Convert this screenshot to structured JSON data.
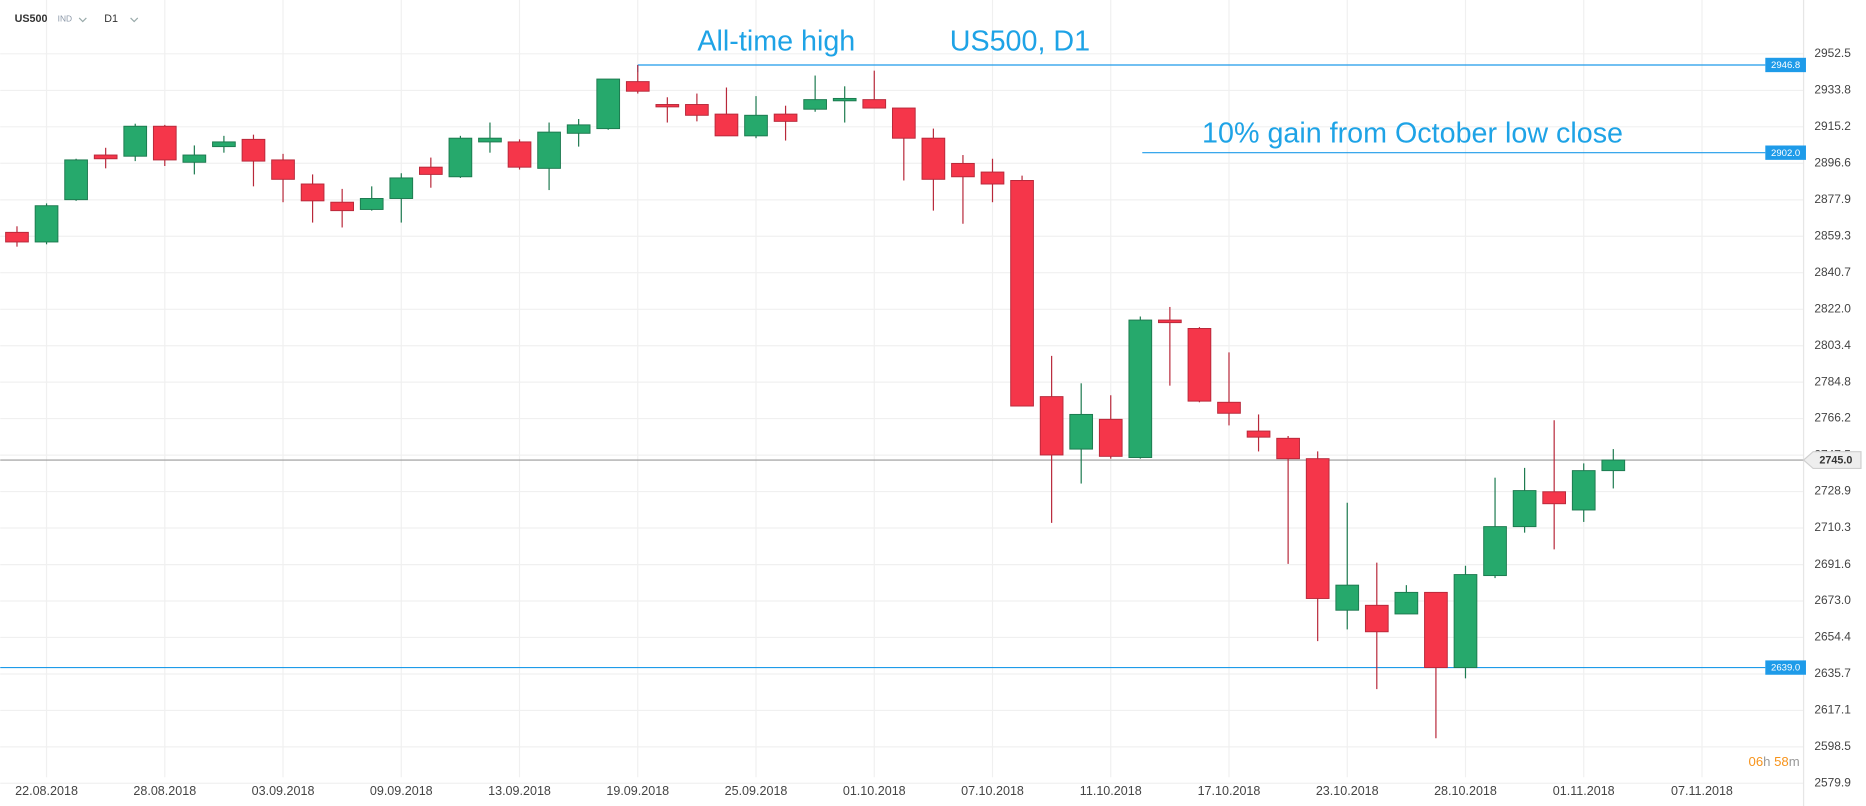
{
  "header": {
    "symbol": "US500",
    "market": "IND",
    "timeframe": "D1"
  },
  "countdown": {
    "hours": "06",
    "hours_unit": "h",
    "minutes": "58",
    "minutes_unit": "m"
  },
  "chart_data": {
    "type": "candlestick",
    "title": "US500, D1",
    "categories": [
      null,
      "22.08.2018",
      null,
      null,
      null,
      "28.08.2018",
      null,
      null,
      null,
      "03.09.2018",
      null,
      null,
      null,
      "09.09.2018",
      null,
      null,
      null,
      "13.09.2018",
      null,
      null,
      null,
      "19.09.2018",
      null,
      null,
      null,
      "25.09.2018",
      null,
      null,
      null,
      "01.10.2018",
      null,
      null,
      null,
      "07.10.2018",
      null,
      null,
      null,
      "11.10.2018",
      null,
      null,
      null,
      "17.10.2018",
      null,
      null,
      null,
      "23.10.2018",
      null,
      null,
      null,
      "28.10.2018",
      null,
      null,
      null,
      "01.11.2018",
      null,
      null,
      null,
      "07.11.2018"
    ],
    "open": [
      2861.3,
      2856.4,
      2878.0,
      2900.8,
      2900.2,
      2915.5,
      2897.1,
      2905.1,
      2908.8,
      2898.3,
      2886.0,
      2876.7,
      2873.0,
      2878.6,
      2894.6,
      2889.7,
      2907.5,
      2907.5,
      2894.0,
      2911.9,
      2914.3,
      2938.3,
      2926.6,
      2926.6,
      2921.7,
      2910.6,
      2921.7,
      2924.2,
      2928.5,
      2929.1,
      2924.8,
      2909.4,
      2896.5,
      2892.1,
      2887.8,
      2777.4,
      2750.6,
      2765.8,
      2746.3,
      2816.5,
      2812.2,
      2774.5,
      2759.8,
      2756.1,
      2745.7,
      2668.3,
      2670.8,
      2666.4,
      2677.4,
      2639.0,
      2686.0,
      2711.0,
      2728.8,
      2719.5,
      2739.6,
      null,
      null,
      null
    ],
    "high": [
      2864.4,
      2876.1,
      2898.9,
      2904.5,
      2916.8,
      2916.2,
      2905.7,
      2910.6,
      2911.2,
      2901.4,
      2890.9,
      2883.5,
      2884.8,
      2891.5,
      2899.5,
      2910.6,
      2917.4,
      2908.8,
      2917.4,
      2919.2,
      2939.6,
      2946.8,
      2930.3,
      2932.2,
      2935.3,
      2930.9,
      2926.0,
      2941.4,
      2935.9,
      2943.9,
      2924.8,
      2914.3,
      2900.8,
      2898.9,
      2890.3,
      2798.2,
      2784.2,
      2778.1,
      2818.3,
      2823.2,
      2812.9,
      2800.0,
      2768.3,
      2757.3,
      2749.4,
      2723.2,
      2692.6,
      2681.1,
      2677.4,
      2691.0,
      2736.0,
      2741.0,
      2765.3,
      2743.3,
      2750.6,
      null,
      null,
      null
    ],
    "low": [
      2854.0,
      2855.2,
      2877.4,
      2894.0,
      2897.7,
      2895.2,
      2890.9,
      2902.0,
      2884.8,
      2876.7,
      2866.3,
      2863.8,
      2872.4,
      2866.3,
      2884.1,
      2889.1,
      2902.0,
      2893.4,
      2882.9,
      2905.1,
      2913.7,
      2932.2,
      2917.4,
      2918.0,
      2910.6,
      2909.4,
      2908.2,
      2922.9,
      2917.4,
      2924.8,
      2887.8,
      2872.4,
      2865.7,
      2876.7,
      2772.6,
      2712.9,
      2733.0,
      2745.7,
      2745.7,
      2783.0,
      2774.5,
      2762.7,
      2749.4,
      2692.0,
      2652.5,
      2658.5,
      2628.0,
      2666.4,
      2602.9,
      2633.5,
      2684.7,
      2707.9,
      2699.4,
      2713.4,
      2730.5,
      null,
      null,
      null
    ],
    "close": [
      2856.4,
      2874.9,
      2898.3,
      2898.9,
      2915.5,
      2898.3,
      2900.8,
      2907.5,
      2897.7,
      2888.4,
      2877.4,
      2872.4,
      2878.6,
      2889.1,
      2890.9,
      2909.4,
      2909.4,
      2894.6,
      2912.5,
      2916.2,
      2939.6,
      2933.4,
      2925.4,
      2921.1,
      2910.6,
      2921.1,
      2918.0,
      2929.1,
      2929.7,
      2924.8,
      2909.4,
      2888.4,
      2889.7,
      2886.0,
      2772.6,
      2747.6,
      2768.3,
      2746.9,
      2816.5,
      2815.2,
      2775.1,
      2768.9,
      2756.7,
      2745.7,
      2674.3,
      2681.1,
      2657.3,
      2677.4,
      2639.0,
      2686.5,
      2711.0,
      2729.4,
      2722.7,
      2739.6,
      2745.0,
      null,
      null,
      null
    ],
    "up_color": "#26a96c",
    "down_color": "#f5364a",
    "ylim": [
      2579.9,
      2952.5
    ],
    "yticks": [
      {
        "value": 2952.5,
        "label": "2952.5"
      },
      {
        "value": 2933.8,
        "label": "2933.8"
      },
      {
        "value": 2915.2,
        "label": "2915.2"
      },
      {
        "value": 2896.6,
        "label": "2896.6"
      },
      {
        "value": 2877.9,
        "label": "2877.9"
      },
      {
        "value": 2859.3,
        "label": "2859.3"
      },
      {
        "value": 2840.7,
        "label": "2840.7"
      },
      {
        "value": 2822.0,
        "label": "2822.0"
      },
      {
        "value": 2803.4,
        "label": "2803.4"
      },
      {
        "value": 2784.8,
        "label": "2784.8"
      },
      {
        "value": 2766.2,
        "label": "2766.2"
      },
      {
        "value": 2747.5,
        "label": "2747.5"
      },
      {
        "value": 2728.9,
        "label": "2728.9"
      },
      {
        "value": 2710.3,
        "label": "2710.3"
      },
      {
        "value": 2691.6,
        "label": "2691.6"
      },
      {
        "value": 2673.0,
        "label": "2673.0"
      },
      {
        "value": 2654.4,
        "label": "2654.4"
      },
      {
        "value": 2635.7,
        "label": "2635.7"
      },
      {
        "value": 2617.1,
        "label": "2617.1"
      },
      {
        "value": 2598.5,
        "label": "2598.5"
      },
      {
        "value": 2579.9,
        "label": "2579.9"
      }
    ],
    "grid": true,
    "levels": [
      {
        "value": 2946.8,
        "label": "2946.8",
        "text": "All-time high",
        "color": "#1e9be9"
      },
      {
        "value": 2902.0,
        "label": "2902.0",
        "text": "10% gain from October low close",
        "color": "#1e9be9"
      },
      {
        "value": 2639.0,
        "label": "2639.0",
        "color": "#1e9be9"
      }
    ],
    "current_price": {
      "value": 2745.0,
      "label": "2745.0",
      "color": "#9a9a9a"
    }
  }
}
